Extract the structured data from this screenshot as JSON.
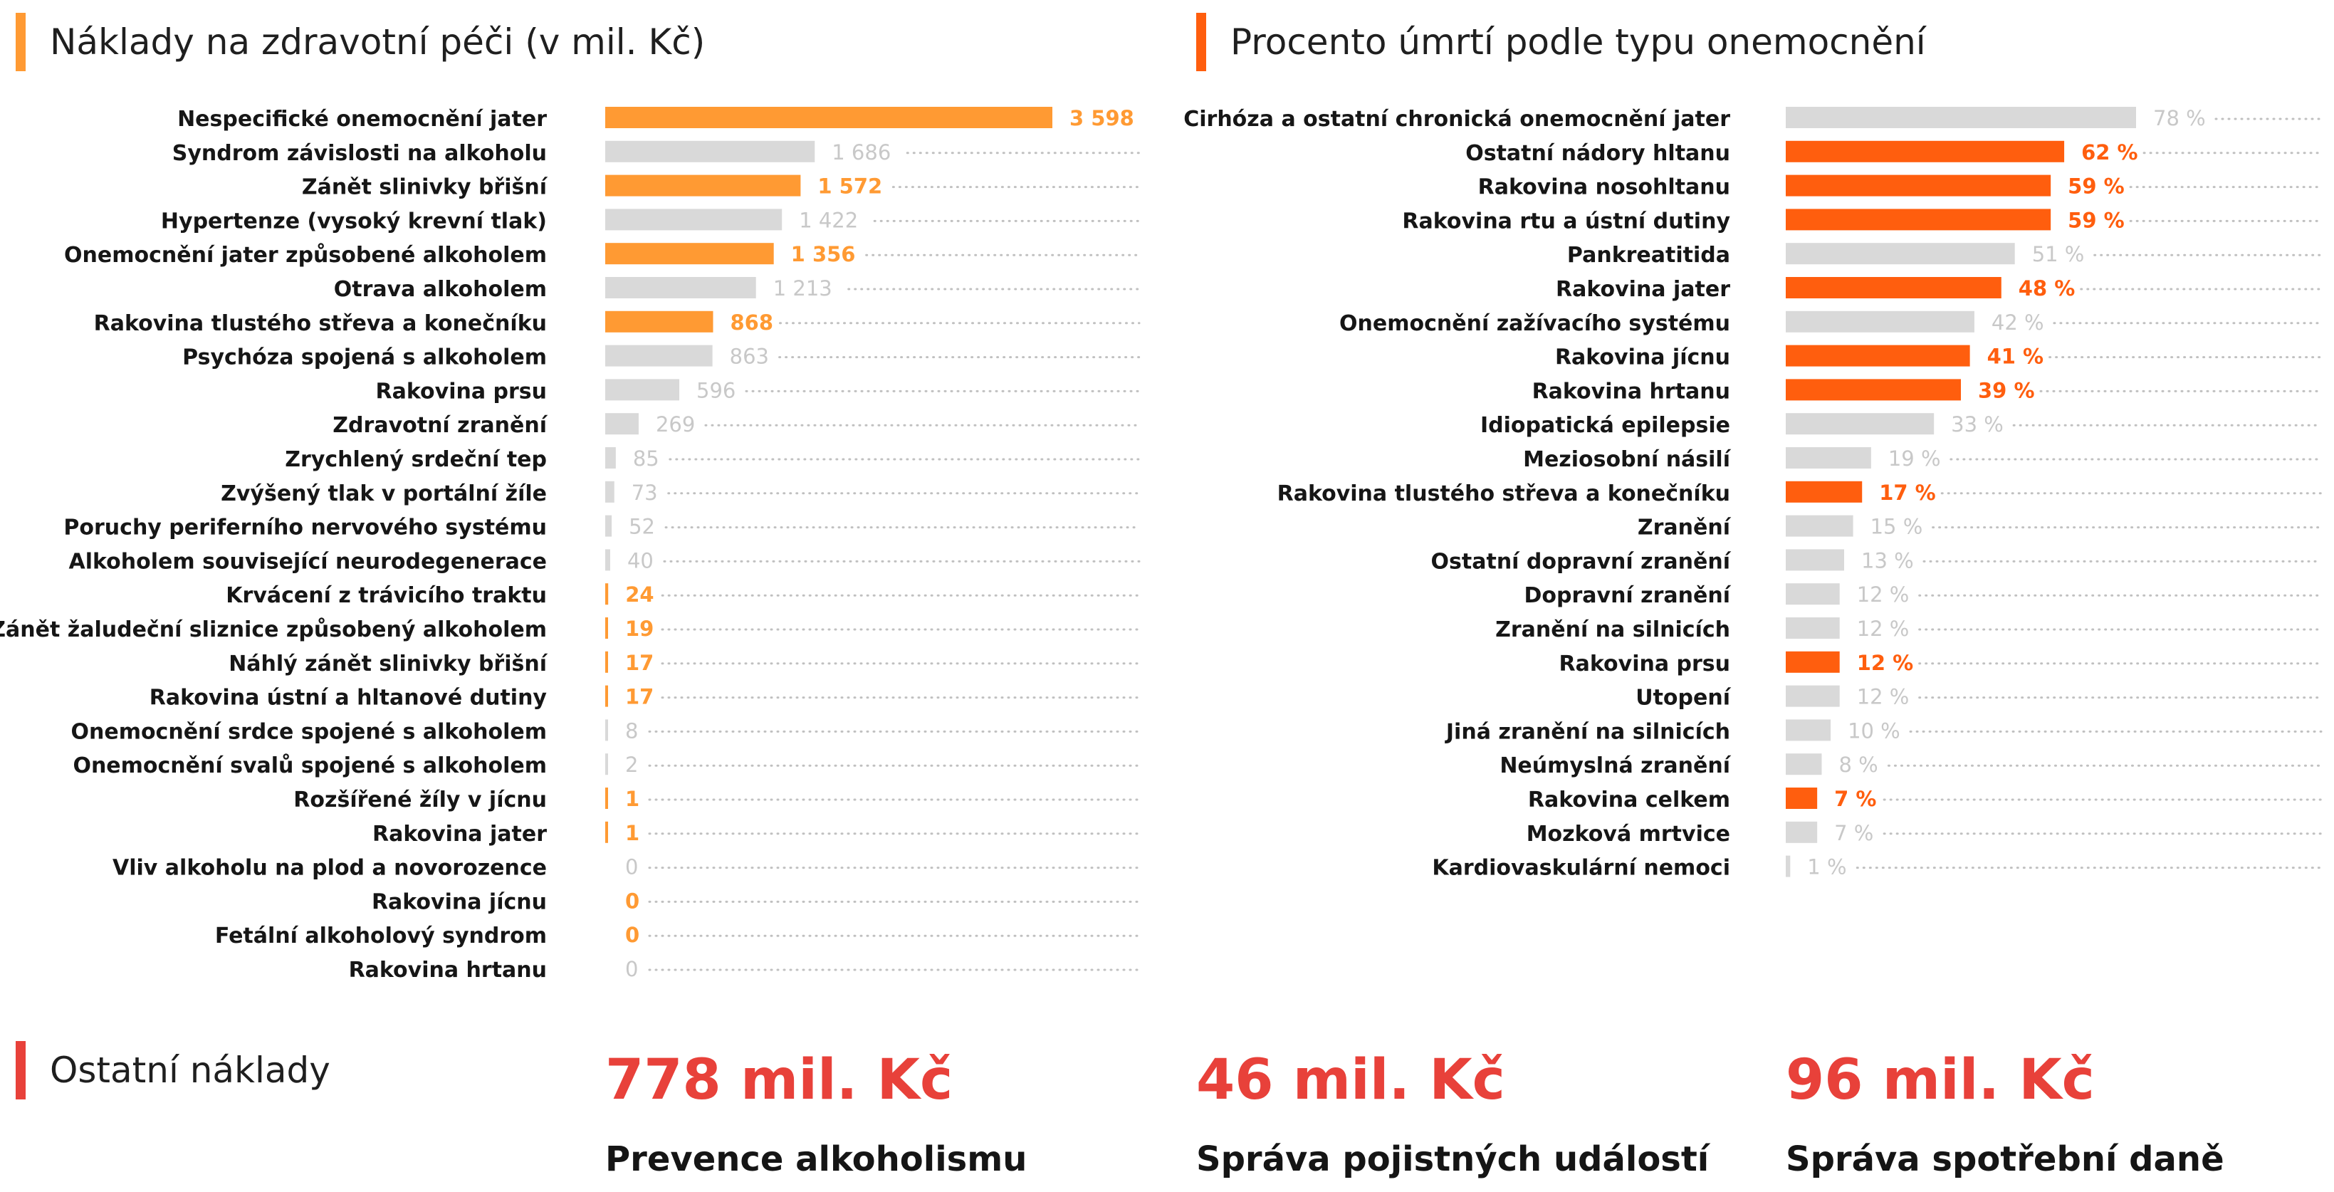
{
  "colors": {
    "orange": "#FF9A33",
    "red_orange": "#FF5E0E",
    "grey_bar": "#D9D9D9",
    "grey_text": "#C8C8C8",
    "dots": "#C0C0C0",
    "kpi_red": "#E8413A",
    "title_bar_left": "#FF9A33",
    "title_bar_right": "#FF5E0E",
    "title_bar_bottom": "#E8413A"
  },
  "chart_data": [
    {
      "type": "bar",
      "orientation": "horizontal",
      "title": "Náklady na zdravotní péči (v mil. Kč)",
      "categories": [
        "Nespecifické onemocnění jater",
        "Syndrom závislosti na alkoholu",
        "Zánět slinivky břišní",
        "Hypertenze (vysoký krevní tlak)",
        "Onemocnění jater způsobené alkoholem",
        "Otrava alkoholem",
        "Rakovina tlustého střeva a konečníku",
        "Psychóza spojená s alkoholem",
        "Rakovina prsu",
        "Zdravotní zranění",
        "Zrychlený srdeční tep",
        "Zvýšený tlak v portální žíle",
        "Poruchy periferního nervového systému",
        "Alkoholem související neurodegenerace",
        "Krvácení z trávicího traktu",
        "Zánět žaludeční sliznice způsobený alkoholem",
        "Náhlý zánět slinivky břišní",
        "Rakovina ústní a hltanové dutiny",
        "Onemocnění srdce spojené s alkoholem",
        "Onemocnění svalů spojené s alkoholem",
        "Rozšířené žíly v jícnu",
        "Rakovina jater",
        "Vliv alkoholu na plod a novorozence",
        "Rakovina jícnu",
        "Fetální alkoholový syndrom",
        "Rakovina hrtanu"
      ],
      "values": [
        3598,
        1686,
        1572,
        1422,
        1356,
        1213,
        868,
        863,
        596,
        269,
        85,
        73,
        52,
        40,
        24,
        19,
        17,
        17,
        8,
        2,
        1,
        1,
        0,
        0,
        0,
        0
      ],
      "value_labels": [
        "3 598",
        "1 686",
        "1 572",
        "1 422",
        "1 356",
        "1 213",
        "868",
        "863",
        "596",
        "269",
        "85",
        "73",
        "52",
        "40",
        "24",
        "19",
        "17",
        "17",
        "8",
        "2",
        "1",
        "1",
        "0",
        "0",
        "0",
        "0"
      ],
      "highlighted": [
        true,
        false,
        true,
        false,
        true,
        false,
        true,
        false,
        false,
        false,
        false,
        false,
        false,
        false,
        true,
        true,
        true,
        true,
        false,
        false,
        true,
        true,
        false,
        true,
        true,
        false
      ],
      "xlim": [
        0,
        3598
      ],
      "grid": false
    },
    {
      "type": "bar",
      "orientation": "horizontal",
      "title": "Procento úmrtí podle typu onemocnění",
      "categories": [
        "Cirhóza a ostatní chronická onemocnění jater",
        "Ostatní nádory hltanu",
        "Rakovina nosohltanu",
        "Rakovina rtu a ústní dutiny",
        "Pankreatitida",
        "Rakovina jater",
        "Onemocnění zažívacího systému",
        "Rakovina jícnu",
        "Rakovina hrtanu",
        "Idiopatická epilepsie",
        "Meziosobní násilí",
        "Rakovina tlustého střeva a konečníku",
        "Zranění",
        "Ostatní dopravní zranění",
        "Dopravní zranění",
        "Zranění na silnicích",
        "Rakovina prsu",
        "Utopení",
        "Jiná zranění na silnicích",
        "Neúmyslná zranění",
        "Rakovina celkem",
        "Mozková mrtvice",
        "Kardiovaskulární nemoci"
      ],
      "values": [
        78,
        62,
        59,
        59,
        51,
        48,
        42,
        41,
        39,
        33,
        19,
        17,
        15,
        13,
        12,
        12,
        12,
        12,
        10,
        8,
        7,
        7,
        1
      ],
      "value_labels": [
        "78 %",
        "62 %",
        "59 %",
        "59 %",
        "51 %",
        "48 %",
        "42 %",
        "41 %",
        "39 %",
        "33 %",
        "19 %",
        "17 %",
        "15 %",
        "13 %",
        "12 %",
        "12 %",
        "12 %",
        "12 %",
        "10 %",
        "8 %",
        "7 %",
        "7 %",
        "1 %"
      ],
      "highlighted": [
        false,
        true,
        true,
        true,
        false,
        true,
        false,
        true,
        true,
        false,
        false,
        true,
        false,
        false,
        false,
        false,
        true,
        false,
        false,
        false,
        true,
        false,
        false
      ],
      "xlim": [
        0,
        78
      ],
      "grid": false
    }
  ],
  "other_costs": {
    "title": "Ostatní náklady",
    "items": [
      {
        "value": "778 mil. Kč",
        "label": "Prevence alkoholismu"
      },
      {
        "value": "46 mil. Kč",
        "label": "Správa pojistných událostí"
      },
      {
        "value": "96 mil. Kč",
        "label": "Správa spotřební daně"
      }
    ]
  }
}
